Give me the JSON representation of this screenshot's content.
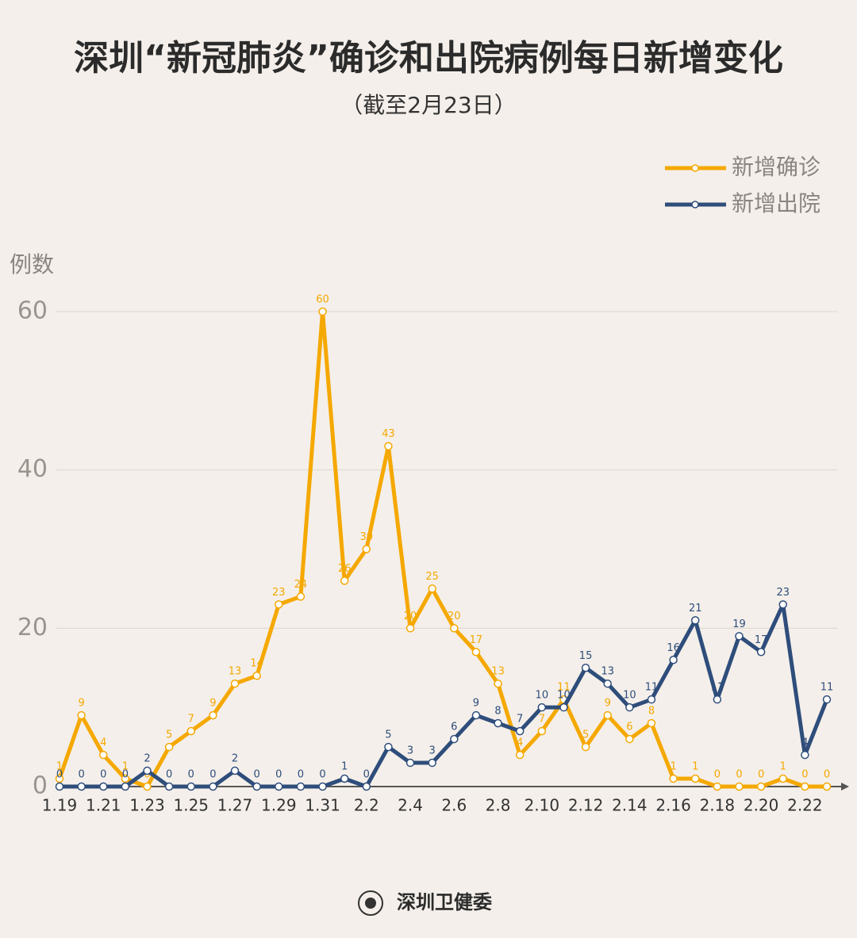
{
  "chart_data": {
    "type": "line",
    "title": "深圳“新冠肺炎”确诊和出院病例每日新增变化",
    "subtitle": "（截至2月23日）",
    "y_label": "例数",
    "source": "深圳卫健委",
    "categories": [
      "1.19",
      null,
      "1.21",
      null,
      "1.23",
      null,
      "1.25",
      null,
      "1.27",
      null,
      "1.29",
      null,
      "1.31",
      null,
      "2.2",
      null,
      "2.4",
      null,
      "2.6",
      null,
      "2.8",
      null,
      "2.10",
      null,
      "2.12",
      null,
      "2.14",
      null,
      "2.16",
      null,
      "2.18",
      null,
      "2.20",
      null,
      "2.22",
      null
    ],
    "series": [
      {
        "name": "新增确诊",
        "color": "#f5a800",
        "values": [
          1,
          9,
          4,
          1,
          0,
          5,
          7,
          9,
          13,
          14,
          23,
          24,
          60,
          26,
          30,
          43,
          20,
          25,
          20,
          17,
          13,
          4,
          7,
          11,
          5,
          9,
          6,
          8,
          1,
          1,
          0,
          0,
          0,
          1,
          0,
          0
        ]
      },
      {
        "name": "新增出院",
        "color": "#2e4d7b",
        "values": [
          0,
          0,
          0,
          0,
          2,
          0,
          0,
          0,
          2,
          0,
          0,
          0,
          0,
          1,
          0,
          5,
          3,
          3,
          6,
          9,
          8,
          7,
          10,
          10,
          15,
          13,
          10,
          11,
          16,
          21,
          11,
          19,
          17,
          23,
          4,
          11
        ]
      }
    ],
    "ylim": [
      0,
      60
    ],
    "yticks": [
      0,
      20,
      40,
      60
    ],
    "grid": true,
    "legend": "top-right"
  }
}
